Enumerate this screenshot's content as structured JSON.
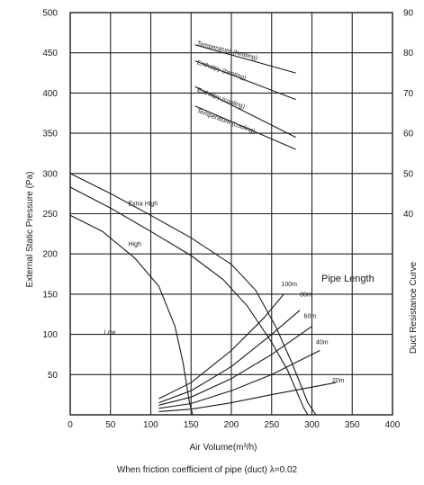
{
  "chart_data": {
    "type": "line",
    "title": "",
    "xlabel": "Air Volume(m³/h)",
    "ylabel": "External Static Pressure (Pa)",
    "y2label": "Duct Resistance Curve",
    "footnote": "When friction coefficient of pipe (duct) λ=0.02",
    "xlim": [
      0,
      400
    ],
    "ylim": [
      0,
      500
    ],
    "x_ticks": [
      0,
      50,
      100,
      150,
      200,
      250,
      300,
      350,
      400
    ],
    "x_tick_labels": [
      "0",
      "50",
      "100",
      "150",
      "200",
      "250",
      "300",
      "350",
      "400"
    ],
    "y_ticks": [
      50,
      100,
      150,
      200,
      250,
      300,
      350,
      400,
      450,
      500
    ],
    "y_tick_labels": [
      "50",
      "100",
      "150",
      "200",
      "250",
      "300",
      "350",
      "400",
      "450",
      "500"
    ],
    "y2_ticks": [
      {
        "label": "40",
        "y": 250
      },
      {
        "label": "50",
        "y": 300
      },
      {
        "label": "60",
        "y": 350
      },
      {
        "label": "70",
        "y": 400
      },
      {
        "label": "80",
        "y": 450
      },
      {
        "label": "90",
        "y": 500
      }
    ],
    "grid": true,
    "legend_title": "Pipe Length",
    "fan_curves": [
      {
        "name": "Extra High",
        "label_at": [
          72,
          260
        ],
        "points": [
          [
            0,
            300
          ],
          [
            50,
            275
          ],
          [
            100,
            248
          ],
          [
            150,
            220
          ],
          [
            200,
            187
          ],
          [
            230,
            155
          ],
          [
            255,
            110
          ],
          [
            275,
            65
          ],
          [
            295,
            15
          ],
          [
            305,
            0
          ]
        ]
      },
      {
        "name": "High",
        "label_at": [
          72,
          210
        ],
        "points": [
          [
            0,
            283
          ],
          [
            50,
            257
          ],
          [
            100,
            228
          ],
          [
            150,
            198
          ],
          [
            190,
            168
          ],
          [
            220,
            135
          ],
          [
            250,
            90
          ],
          [
            270,
            55
          ],
          [
            290,
            8
          ],
          [
            295,
            0
          ]
        ]
      },
      {
        "name": "Low",
        "label_at": [
          42,
          100
        ],
        "points": [
          [
            0,
            248
          ],
          [
            40,
            228
          ],
          [
            80,
            195
          ],
          [
            110,
            160
          ],
          [
            130,
            110
          ],
          [
            140,
            65
          ],
          [
            148,
            15
          ],
          [
            152,
            0
          ]
        ]
      }
    ],
    "duct_curves": [
      {
        "name": "100m",
        "label_at": [
          262,
          160
        ],
        "points": [
          [
            110,
            20
          ],
          [
            150,
            40
          ],
          [
            200,
            80
          ],
          [
            240,
            120
          ],
          [
            265,
            150
          ]
        ]
      },
      {
        "name": "80m",
        "label_at": [
          285,
          147
        ],
        "points": [
          [
            110,
            15
          ],
          [
            150,
            30
          ],
          [
            200,
            60
          ],
          [
            250,
            100
          ],
          [
            285,
            130
          ]
        ]
      },
      {
        "name": "60m",
        "label_at": [
          290,
          120
        ],
        "points": [
          [
            110,
            12
          ],
          [
            150,
            22
          ],
          [
            200,
            45
          ],
          [
            250,
            75
          ],
          [
            300,
            110
          ]
        ]
      },
      {
        "name": "40m",
        "label_at": [
          305,
          88
        ],
        "points": [
          [
            110,
            8
          ],
          [
            150,
            14
          ],
          [
            200,
            30
          ],
          [
            250,
            50
          ],
          [
            310,
            80
          ]
        ]
      },
      {
        "name": "20m",
        "label_at": [
          325,
          40
        ],
        "points": [
          [
            110,
            4
          ],
          [
            150,
            7
          ],
          [
            200,
            15
          ],
          [
            250,
            25
          ],
          [
            330,
            40
          ]
        ]
      }
    ],
    "heat_lines": [
      {
        "name": "Temperature (heating)",
        "label_at": [
          157,
          460
        ],
        "angle": 14,
        "points": [
          [
            155,
            460
          ],
          [
            280,
            425
          ]
        ]
      },
      {
        "name": "Enthalpy (heating)",
        "label_at": [
          157,
          436
        ],
        "angle": 18,
        "points": [
          [
            155,
            440
          ],
          [
            280,
            392
          ]
        ]
      },
      {
        "name": "Enthalpy (cooling)",
        "label_at": [
          157,
          402
        ],
        "angle": 20,
        "points": [
          [
            155,
            408
          ],
          [
            280,
            345
          ]
        ]
      },
      {
        "name": "Temperature (cooling)",
        "label_at": [
          157,
          376
        ],
        "angle": 20,
        "points": [
          [
            155,
            384
          ],
          [
            280,
            330
          ]
        ]
      }
    ]
  }
}
